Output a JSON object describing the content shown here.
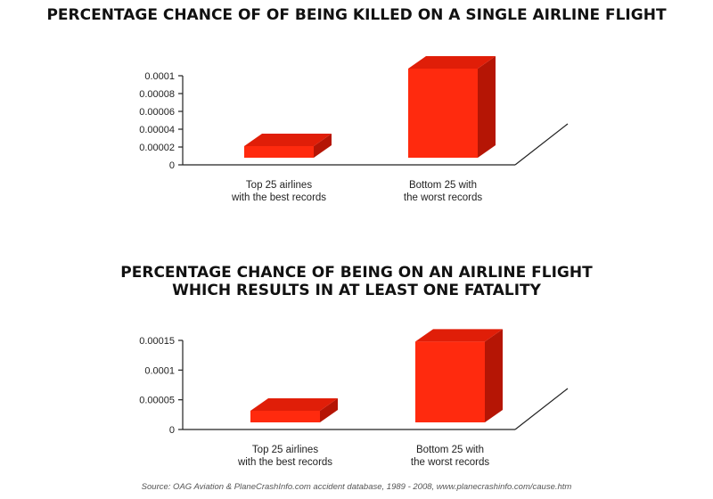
{
  "chart_data": [
    {
      "type": "bar",
      "title_lines": [
        "PERCENTAGE CHANCE OF OF BEING KILLED ON A SINGLE AIRLINE FLIGHT"
      ],
      "categories": [
        [
          "Top 25 airlines",
          "with the best records"
        ],
        [
          "Bottom 25 with",
          "the worst records"
        ]
      ],
      "values": [
        1.3e-05,
        0.0001
      ],
      "ylim": [
        0,
        0.0001
      ],
      "yticks": [
        "0",
        "0.00002",
        "0.00004",
        "0.00006",
        "0.00008",
        "0.0001"
      ],
      "ytick_values": [
        0,
        2e-05,
        4e-05,
        6e-05,
        8e-05,
        0.0001
      ],
      "grid": false,
      "style": "3d"
    },
    {
      "type": "bar",
      "title_lines": [
        "PERCENTAGE CHANCE OF BEING ON AN AIRLINE FLIGHT",
        "WHICH RESULTS IN AT LEAST ONE FATALITY"
      ],
      "categories": [
        [
          "Top 25 airlines",
          "with the best records"
        ],
        [
          "Bottom 25 with",
          "the worst records"
        ]
      ],
      "values": [
        1.8e-05,
        0.000136
      ],
      "ylim": [
        0,
        0.00015
      ],
      "yticks": [
        "0",
        "0.00005",
        "0.0001",
        "0.00015"
      ],
      "ytick_values": [
        0,
        5e-05,
        0.0001,
        0.00015
      ],
      "grid": false,
      "style": "3d"
    }
  ],
  "colors": {
    "bar_front": "#ff2a0e",
    "bar_top": "#e01e08",
    "bar_side": "#b51505"
  },
  "source": "Source: OAG Aviation & PlaneCrashInfo.com accident database, 1989 - 2008, www.planecrashinfo.com/cause.htm"
}
